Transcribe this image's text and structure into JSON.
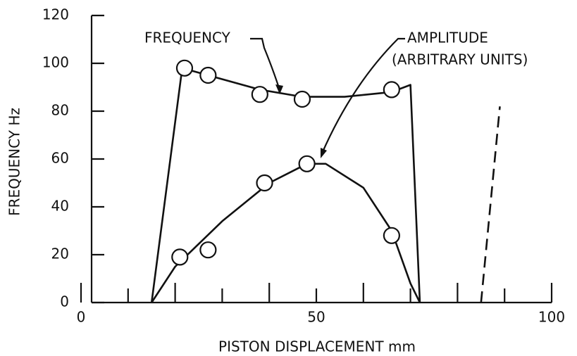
{
  "chart_data": {
    "type": "line",
    "x_label": "PISTON DISPLACEMENT mm",
    "y_label": "FREQUENCY Hz",
    "xlim": [
      0,
      100
    ],
    "ylim": [
      0,
      120
    ],
    "xticks": [
      0,
      {
        "value": 10,
        "label": null
      },
      {
        "value": 20,
        "label": null
      },
      {
        "value": 30,
        "label": null
      },
      {
        "value": 40,
        "label": null
      },
      50,
      {
        "value": 60,
        "label": null
      },
      {
        "value": 70,
        "label": null
      },
      {
        "value": 80,
        "label": null
      },
      {
        "value": 90,
        "label": null
      },
      100
    ],
    "yticks": [
      0,
      20,
      40,
      60,
      80,
      100,
      120
    ],
    "color": "#111111",
    "annotations": [
      {
        "text": "FREQUENCY"
      },
      {
        "text": "AMPLITUDE"
      },
      {
        "text": "(ARBITRARY UNITS)"
      }
    ],
    "series": [
      {
        "style": "line",
        "x": [
          15,
          21.5,
          27,
          38,
          47,
          56,
          66,
          70,
          72
        ],
        "values": [
          0,
          98,
          95,
          89,
          86,
          86,
          88,
          91,
          0
        ]
      },
      {
        "style": "markers",
        "x": [
          22,
          27,
          38,
          47,
          66
        ],
        "values": [
          98,
          95,
          87,
          85,
          89
        ]
      },
      {
        "style": "line",
        "x": [
          15,
          20,
          30,
          40,
          48,
          52,
          60,
          66,
          70,
          72
        ],
        "values": [
          0,
          15,
          34,
          50,
          58,
          58,
          48,
          30,
          8,
          0
        ]
      },
      {
        "style": "markers",
        "x": [
          21,
          27,
          39,
          48,
          66
        ],
        "values": [
          19,
          22,
          50,
          58,
          28
        ]
      },
      {
        "style": "dashed",
        "x": [
          85,
          89
        ],
        "values": [
          0,
          82
        ]
      }
    ]
  }
}
